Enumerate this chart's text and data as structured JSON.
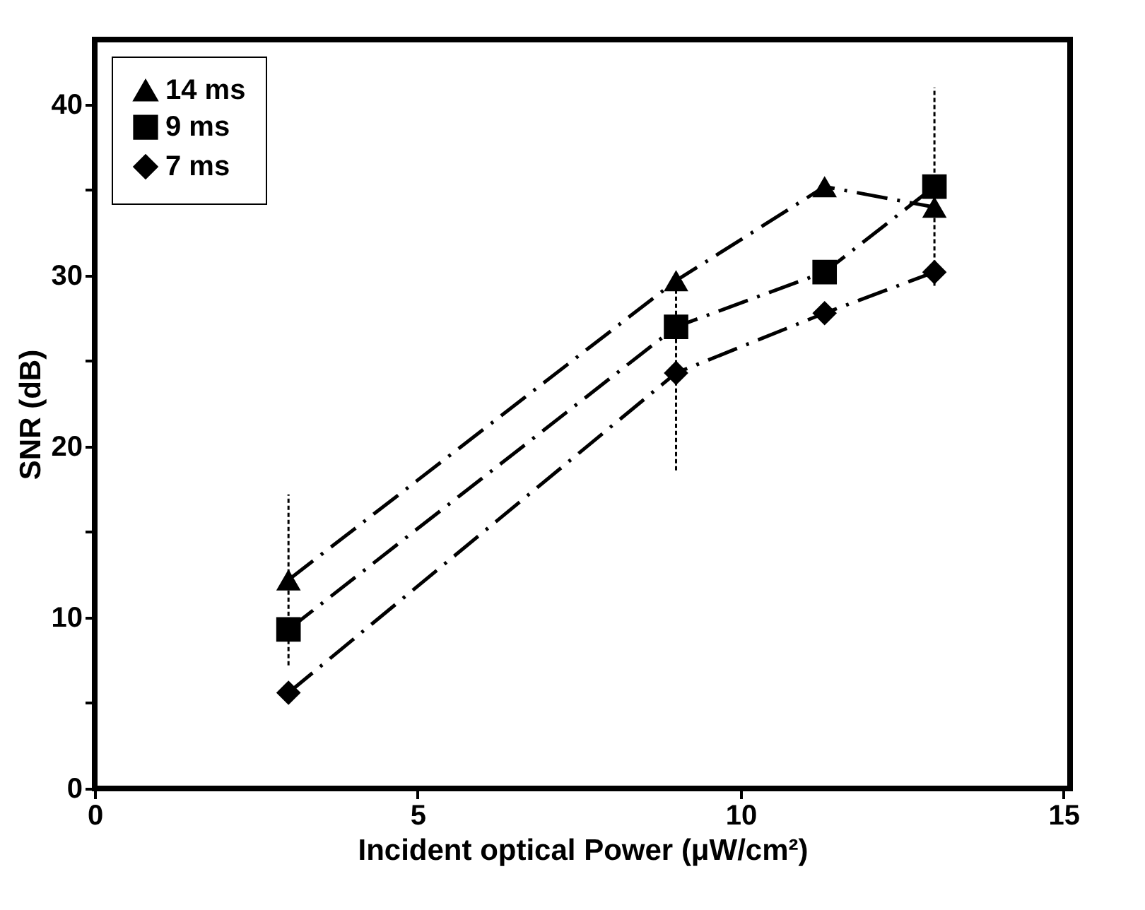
{
  "chart_data": {
    "type": "line",
    "xlabel": "Incident optical Power (μW/cm²)",
    "ylabel": "SNR (dB)",
    "xlim": [
      0,
      15.1
    ],
    "xticks": [
      0,
      5,
      10,
      15
    ],
    "ylim": [
      0,
      43.8
    ],
    "yticks": [
      0,
      {
        "value": 5,
        "label": null
      },
      10,
      {
        "value": 15,
        "label": null
      },
      20,
      {
        "value": 25,
        "label": null
      },
      30,
      {
        "value": 35,
        "label": null
      },
      40
    ],
    "grid": false,
    "legend": "top left",
    "line_style": "dashed",
    "series": [
      {
        "name": "14 ms",
        "color": "#000000",
        "marker": "triangle",
        "x": [
          3,
          9,
          11.3,
          13
        ],
        "values": [
          12.2,
          29.7,
          35.2,
          34.0
        ],
        "errors": [
          5,
          null,
          null,
          null
        ]
      },
      {
        "name": "9 ms",
        "color": "#000000",
        "marker": "square",
        "x": [
          3,
          9,
          11.3,
          13
        ],
        "values": [
          9.3,
          27.0,
          30.2,
          35.2
        ],
        "errors": [
          null,
          null,
          null,
          5.8
        ]
      },
      {
        "name": "7 ms",
        "color": "#000000",
        "marker": "diamond",
        "x": [
          3,
          9,
          11.3,
          13
        ],
        "values": [
          5.6,
          24.3,
          27.8,
          30.2
        ],
        "errors": [
          null,
          5.7,
          null,
          null
        ]
      }
    ]
  }
}
